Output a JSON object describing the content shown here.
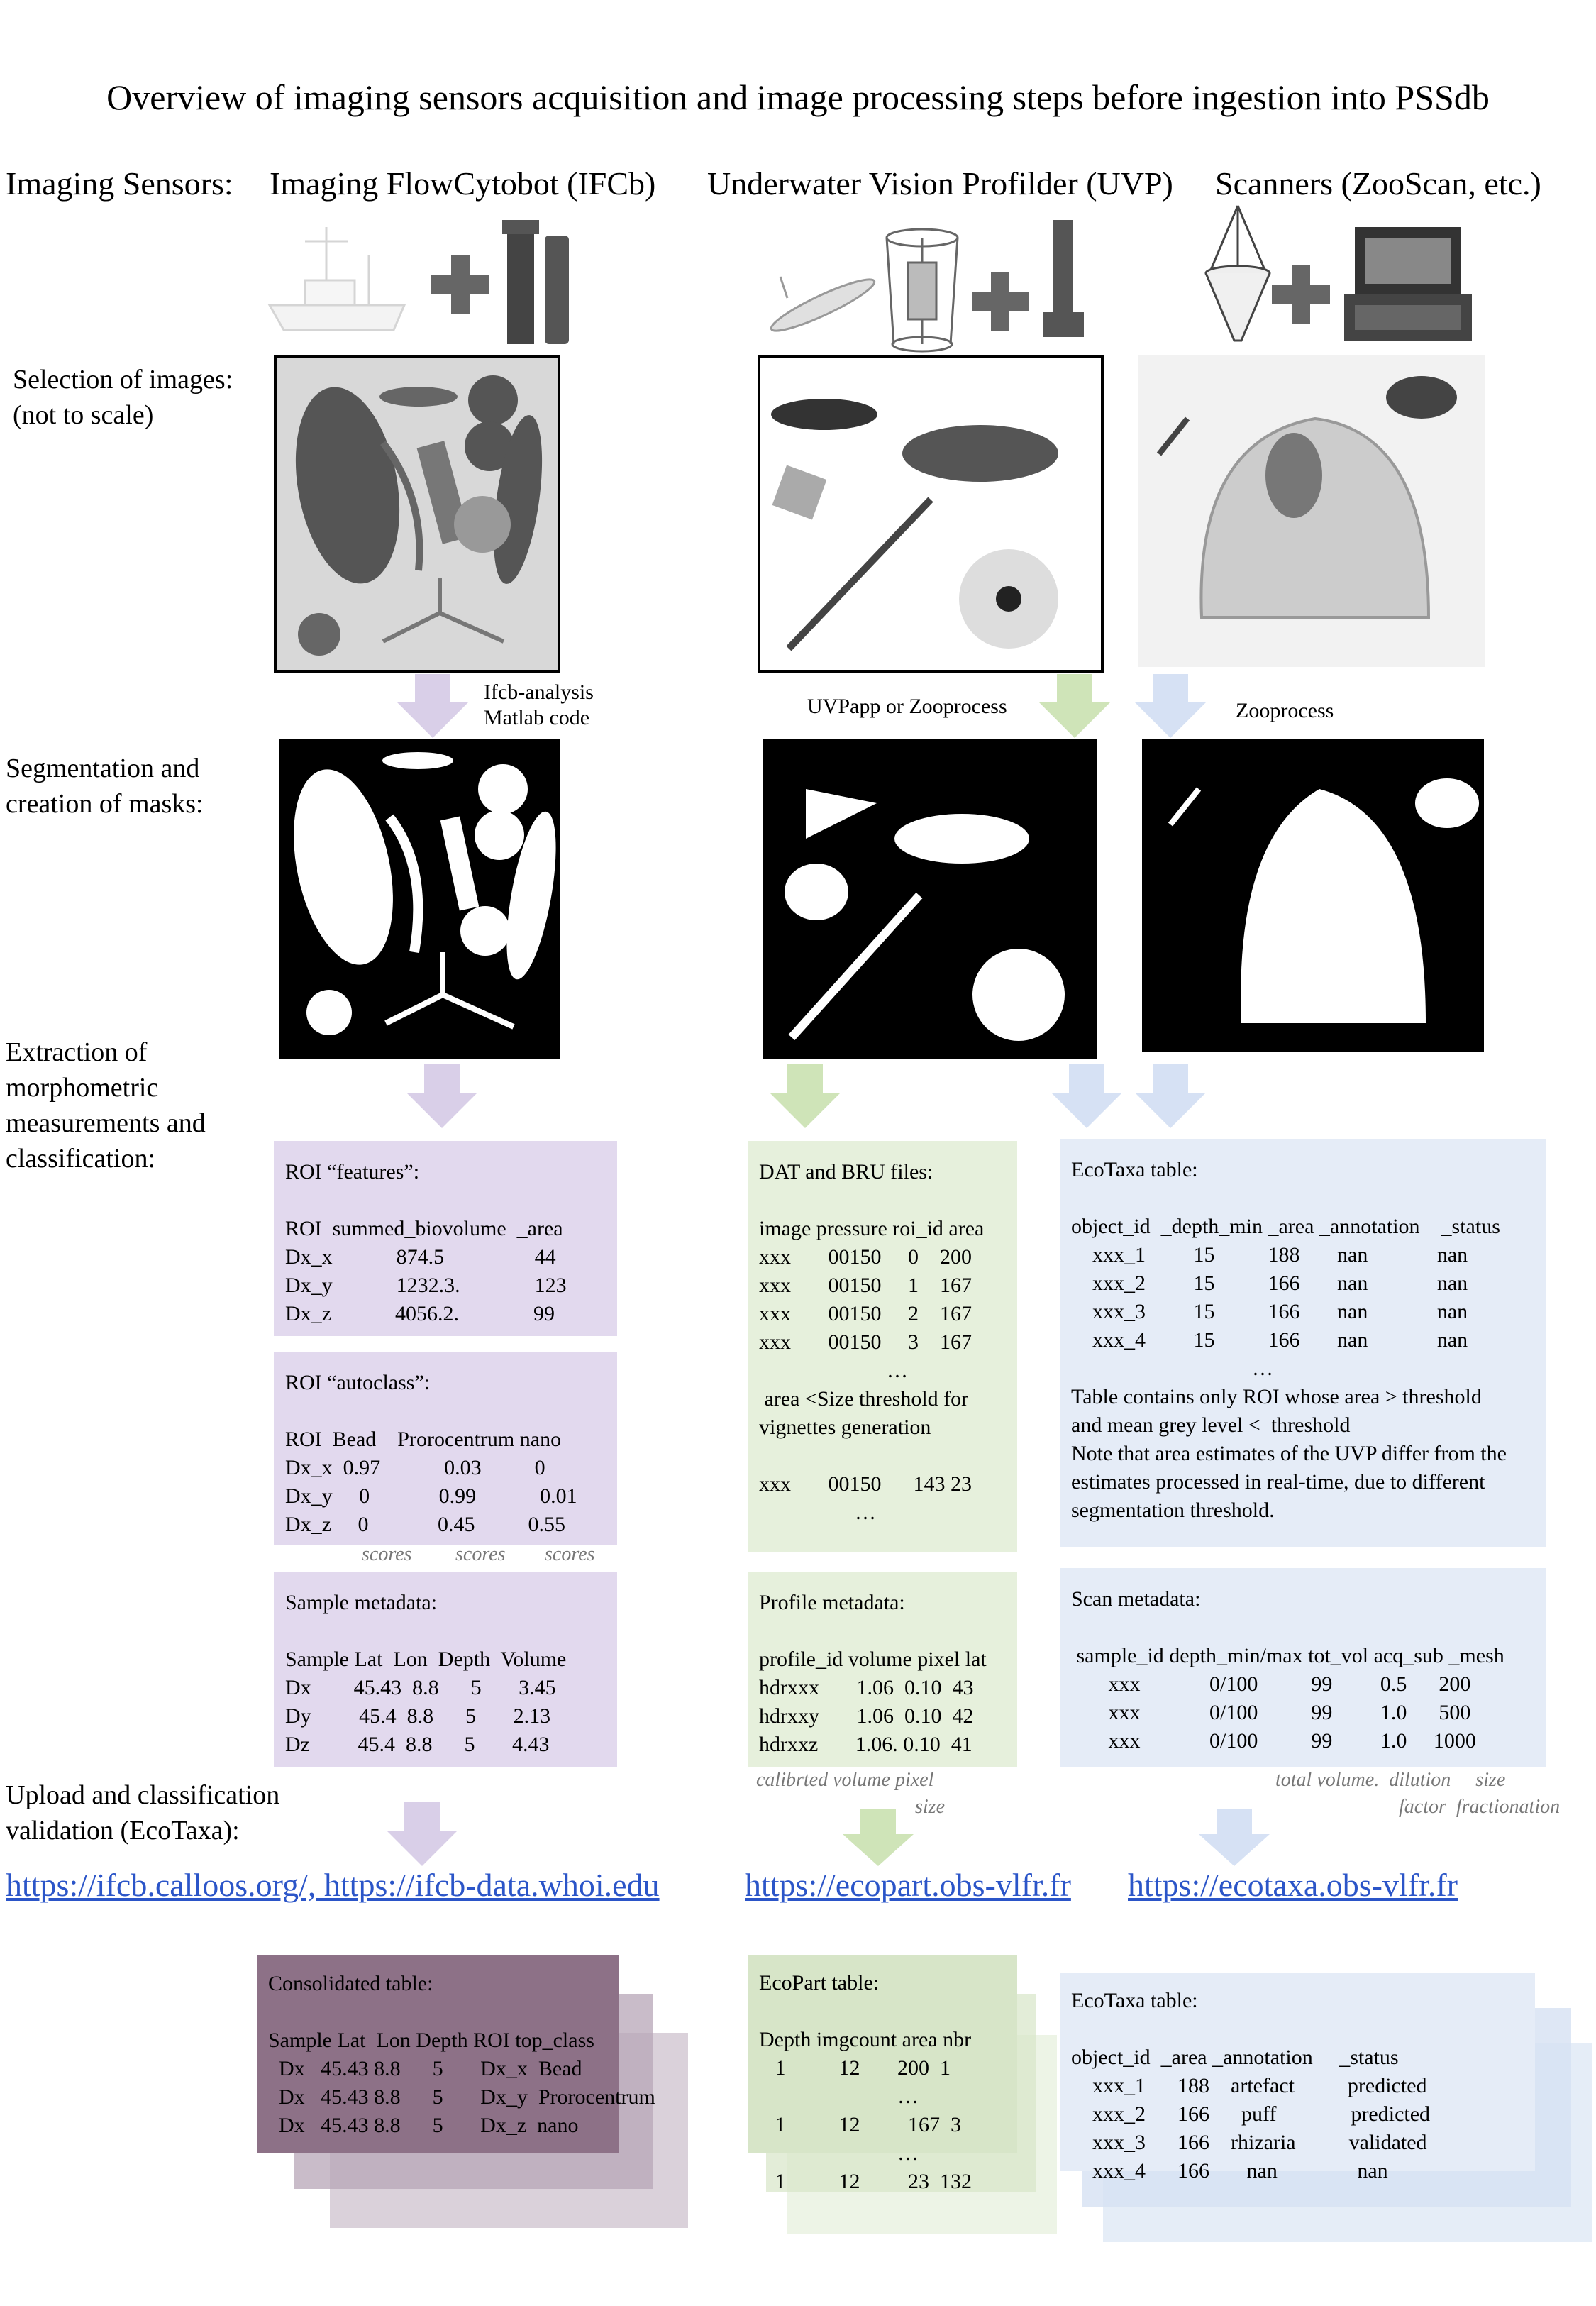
{
  "title": "Overview of imaging sensors acquisition and image processing steps before ingestion into PSSdb",
  "sensors": {
    "label": "Imaging Sensors:",
    "ifcb": "Imaging FlowCytobot (IFCb)",
    "uvp": "Underwater Vision Profilder (UVP)",
    "scanners": "Scanners (ZooScan, etc.)"
  },
  "rows": {
    "selection_1": "Selection of images:",
    "selection_2": "(not to scale)",
    "segmentation_1": "Segmentation and",
    "segmentation_2": "creation of masks:",
    "extraction_1": "Extraction of",
    "extraction_2": "morphometric",
    "extraction_3": "measurements and",
    "extraction_4": "classification:",
    "upload_1": "Upload and classification",
    "upload_2": "validation (EcoTaxa):"
  },
  "processing": {
    "ifcb_1": "Ifcb-analysis",
    "ifcb_2": "Matlab code",
    "uvp": "UVPapp or Zooprocess",
    "scanners": "Zooprocess"
  },
  "panels": {
    "roi_features": "ROI “features”:\n\nROI  summed_biovolume  _area\nDx_x            874.5                 44\nDx_y            1232.3.              123\nDx_z            4056.2.              99",
    "roi_autoclass": "ROI “autoclass”:\n\nROI  Bead    Prorocentrum nano\nDx_x  0.97            0.03          0\nDx_y     0             0.99            0.01\nDx_z     0             0.45          0.55",
    "sample_metadata": "Sample metadata:\n\nSample Lat  Lon  Depth  Volume\nDx        45.43  8.8      5       3.45\nDy         45.4  8.8      5       2.13\nDz         45.4  8.8      5       4.43",
    "dat_bru": "DAT and BRU files:\n\nimage pressure roi_id area\nxxx       00150     0    200\nxxx       00150     1    167\nxxx       00150     2    167\nxxx       00150     3    167\n                        …\n area <Size threshold for\nvignettes generation\n\nxxx       00150      143 23\n                  …",
    "profile_metadata": "Profile metadata:\n\nprofile_id volume pixel lat\nhdrxxx       1.06  0.10  43\nhdrxxy       1.06  0.10  42\nhdrxxz       1.06. 0.10  41",
    "ecotaxa_table": "EcoTaxa table:\n\nobject_id  _depth_min _area _annotation    _status\n    xxx_1         15          188       nan             nan\n    xxx_2         15          166       nan             nan\n    xxx_3         15          166       nan             nan\n    xxx_4         15          166       nan             nan\n                                  …\nTable contains only ROI whose area > threshold\nand mean grey level <  threshold\nNote that area estimates of the UVP differ from the\nestimates processed in real-time, due to different\nsegmentation threshold.",
    "scan_metadata": "Scan metadata:\n\n sample_id depth_min/max tot_vol acq_sub _mesh\n       xxx             0/100          99         0.5      200\n       xxx             0/100          99         1.0      500\n       xxx             0/100          99         1.0     1000",
    "consolidated": "Consolidated table:\n\nSample Lat  Lon Depth ROI top_class\n  Dx   45.43 8.8      5       Dx_x  Bead\n  Dx   45.43 8.8      5       Dx_y  Prorocentrum\n  Dx   45.43 8.8      5       Dx_z  nano",
    "ecopart_table": "EcoPart table:\n\nDepth imgcount area nbr\n   1          12       200  1\n                          …\n   1          12         167  3\n                          …\n   1          12         23  132",
    "ecotaxa_final": "EcoTaxa table:\n\nobject_id  _area _annotation     _status\n    xxx_1      188    artefact          predicted\n    xxx_2      166      puff              predicted\n    xxx_3      166    rhizaria          validated\n    xxx_4      166       nan               nan"
  },
  "captions": {
    "scores_1": "scores",
    "scores_2": "scores",
    "scores_3": "scores",
    "uvp_1": "calibrted volume pixel",
    "uvp_2": "size",
    "scan_1": "total volume.  dilution     size",
    "scan_2": "factor  fractionation"
  },
  "links": {
    "ifcb": "https://ifcb.calloos.org/, https://ifcb-data.whoi.edu",
    "ecopart": "https://ecopart.obs-vlfr.fr",
    "ecotaxa": "https://ecotaxa.obs-vlfr.fr"
  },
  "colors": {
    "purple": "#d9cfe8",
    "green": "#cfe4b8",
    "blue": "#d6e1f4",
    "link": "#2b55c8",
    "consolidated": "#8d7187"
  },
  "icons": [
    "ship-icon",
    "plus-icon",
    "ifcb-instrument-icon",
    "glider-icon",
    "uvp-frame-icon",
    "net-icon",
    "zooscan-icon"
  ]
}
